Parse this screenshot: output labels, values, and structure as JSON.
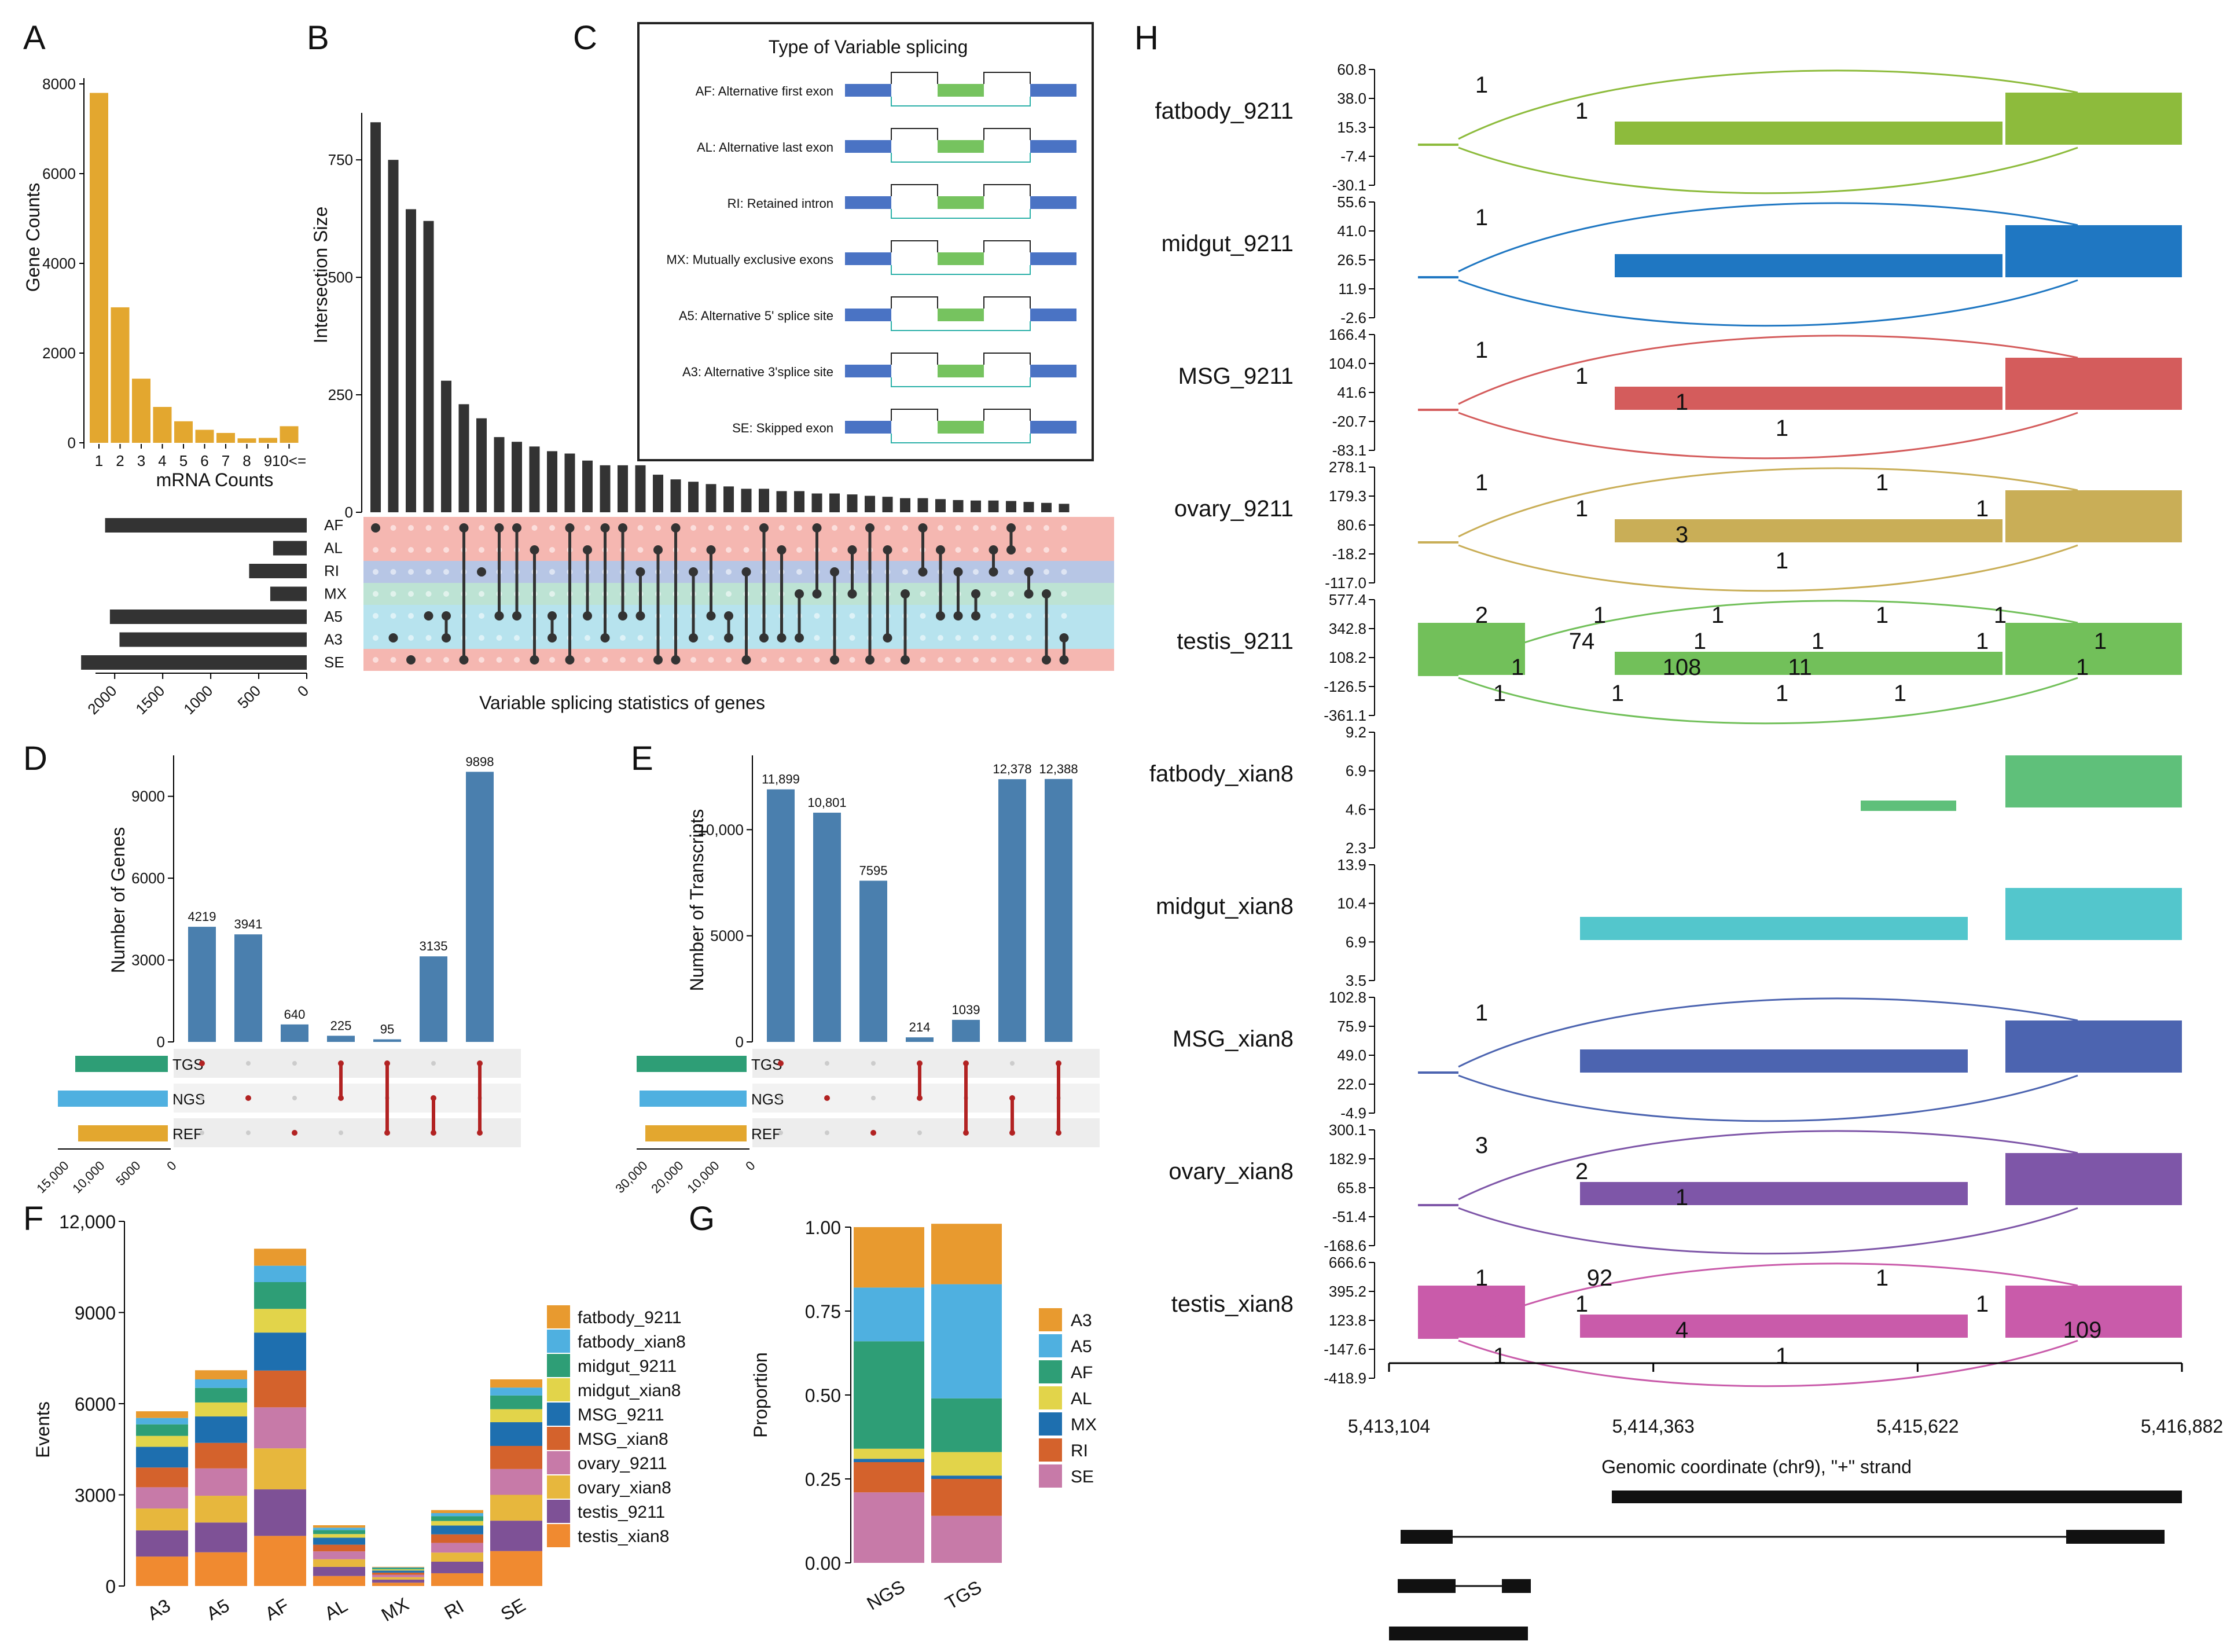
{
  "panel_labels": [
    "A",
    "B",
    "C",
    "D",
    "E",
    "F",
    "G",
    "H"
  ],
  "chart_data": [
    {
      "id": "A",
      "type": "bar",
      "color": "#E3A72F",
      "categories": [
        "1",
        "2",
        "3",
        "4",
        "5",
        "6",
        "7",
        "8",
        "9",
        "10<="
      ],
      "values": [
        7800,
        3020,
        1430,
        800,
        480,
        290,
        220,
        100,
        110,
        370
      ],
      "xlabel": "mRNA Counts",
      "ylabel": "Gene Counts",
      "yticks": [
        "0",
        "2000",
        "4000",
        "6000",
        "8000"
      ],
      "ylim": [
        0,
        8000
      ],
      "set_bars": {
        "labels": [
          "AF",
          "AL",
          "RI",
          "MX",
          "A5",
          "A3",
          "SE"
        ],
        "values": [
          2100,
          350,
          600,
          380,
          2050,
          1950,
          2350
        ],
        "ticks": [
          "2000",
          "1500",
          "1000",
          "500",
          "0"
        ]
      }
    },
    {
      "id": "B",
      "type": "bar",
      "color": "#333333",
      "ylabel": "Intersection Size",
      "yticks": [
        "0",
        "250",
        "500",
        "750"
      ],
      "ylim": [
        0,
        850
      ],
      "values": [
        830,
        750,
        645,
        620,
        280,
        230,
        200,
        160,
        150,
        140,
        130,
        125,
        110,
        100,
        100,
        100,
        80,
        70,
        65,
        60,
        55,
        50,
        50,
        45,
        45,
        40,
        40,
        38,
        35,
        33,
        30,
        30,
        28,
        26,
        25,
        25,
        24,
        22,
        20,
        18
      ],
      "xlabel": "Variable splicing statistics of genes",
      "sets": [
        "AF",
        "AL",
        "RI",
        "MX",
        "A5",
        "A3",
        "SE"
      ],
      "set_colors": [
        "#F5B7B1",
        "#F5B7B1",
        "#B7C6E5",
        "#BDE3D4",
        "#B7E3EE",
        "#B7E3EE",
        "#F5B7B1"
      ]
    },
    {
      "id": "D",
      "type": "bar",
      "color": "#4A7FAE",
      "ylabel": "Number of Genes",
      "yticks": [
        "0",
        "3000",
        "6000",
        "9000"
      ],
      "ylim": [
        0,
        10500
      ],
      "values": [
        4219,
        3941,
        640,
        225,
        95,
        3135,
        9898
      ],
      "value_labels": [
        "4219",
        "3941",
        "640",
        "225",
        "95",
        "3135",
        "9898"
      ],
      "sets": [
        "TGS",
        "NGS",
        "REF"
      ],
      "set_colors": [
        "#2E9E76",
        "#4FB0E0",
        "#E3A72F"
      ],
      "set_ticks": [
        "15,000",
        "10,000",
        "5000",
        "0"
      ]
    },
    {
      "id": "E",
      "type": "bar",
      "color": "#4A7FAE",
      "ylabel": "Number of Transcripts",
      "yticks": [
        "0",
        "5000",
        "10,000"
      ],
      "ylim": [
        0,
        13500
      ],
      "values": [
        11899,
        10801,
        7595,
        214,
        1039,
        12378,
        12388
      ],
      "value_labels": [
        "11,899",
        "10,801",
        "7595",
        "214",
        "1039",
        "12,378",
        "12,388"
      ],
      "sets": [
        "TGS",
        "NGS",
        "REF"
      ],
      "set_colors": [
        "#2E9E76",
        "#4FB0E0",
        "#E3A72F"
      ],
      "set_ticks": [
        "30,000",
        "20,000",
        "10,000",
        "0"
      ]
    },
    {
      "id": "F",
      "type": "bar",
      "stacked": true,
      "title": "",
      "ylabel": "Events",
      "yticks": [
        "0",
        "3000",
        "6000",
        "9000",
        "12,000"
      ],
      "ylim": [
        0,
        12000
      ],
      "categories": [
        "A3",
        "A5",
        "AF",
        "AL",
        "MX",
        "RI",
        "SE"
      ],
      "series": [
        {
          "name": "fatbody_9211",
          "color": "#E89A2F",
          "values": [
            220,
            300,
            560,
            80,
            20,
            100,
            270
          ]
        },
        {
          "name": "fatbody_xian8",
          "color": "#4FB0E0",
          "values": [
            210,
            280,
            540,
            80,
            20,
            100,
            260
          ]
        },
        {
          "name": "midgut_9211",
          "color": "#2E9E76",
          "values": [
            380,
            480,
            880,
            130,
            40,
            160,
            450
          ]
        },
        {
          "name": "midgut_xian8",
          "color": "#E2D44A",
          "values": [
            360,
            460,
            780,
            120,
            40,
            150,
            430
          ]
        },
        {
          "name": "MSG_9211",
          "color": "#1E6FAF",
          "values": [
            680,
            870,
            1250,
            230,
            70,
            290,
            780
          ]
        },
        {
          "name": "MSG_xian8",
          "color": "#D4622C",
          "values": [
            650,
            840,
            1210,
            220,
            70,
            280,
            760
          ]
        },
        {
          "name": "ovary_9211",
          "color": "#C77AA8",
          "values": [
            700,
            900,
            1350,
            260,
            80,
            320,
            850
          ]
        },
        {
          "name": "ovary_xian8",
          "color": "#E7B73D",
          "values": [
            720,
            880,
            1350,
            250,
            80,
            300,
            850
          ]
        },
        {
          "name": "testis_9211",
          "color": "#7E5196",
          "values": [
            860,
            980,
            1530,
            300,
            100,
            380,
            1000
          ]
        },
        {
          "name": "testis_xian8",
          "color": "#F08A30",
          "values": [
            970,
            1110,
            1650,
            330,
            110,
            420,
            1150
          ]
        }
      ]
    },
    {
      "id": "G",
      "type": "bar",
      "stacked": true,
      "ylabel": "Proportion",
      "yticks": [
        "0.00",
        "0.25",
        "0.50",
        "0.75",
        "1.00"
      ],
      "ylim": [
        0,
        1
      ],
      "categories": [
        "NGS",
        "TGS"
      ],
      "series": [
        {
          "name": "SE",
          "color": "#C77AA8",
          "values": [
            0.21,
            0.14
          ]
        },
        {
          "name": "RI",
          "color": "#D4622C",
          "values": [
            0.09,
            0.11
          ]
        },
        {
          "name": "MX",
          "color": "#1E6FAF",
          "values": [
            0.01,
            0.01
          ]
        },
        {
          "name": "AL",
          "color": "#E2D44A",
          "values": [
            0.03,
            0.07
          ]
        },
        {
          "name": "AF",
          "color": "#2E9E76",
          "values": [
            0.32,
            0.16
          ]
        },
        {
          "name": "A5",
          "color": "#4FB0E0",
          "values": [
            0.16,
            0.34
          ]
        },
        {
          "name": "A3",
          "color": "#E89A2F",
          "values": [
            0.18,
            0.18
          ]
        }
      ],
      "legend": [
        "A3",
        "A5",
        "AF",
        "AL",
        "MX",
        "RI",
        "SE"
      ]
    }
  ],
  "panel_c": {
    "title": "Type of Variable splicing",
    "items": [
      "AF: Alternative first exon",
      "AL: Alternative last exon",
      "RI: Retained intron",
      "MX: Mutually exclusive exons",
      "A5: Alternative 5' splice site",
      "A3: Alternative 3'splice site",
      "SE: Skipped exon"
    ]
  },
  "panel_h": {
    "tracks": [
      {
        "name": "fatbody_9211",
        "color": "#8DBB3C",
        "ticks": [
          "60.8",
          "38.0",
          "15.3",
          "-7.4",
          "-30.1"
        ],
        "junctions": [
          "1",
          "1"
        ]
      },
      {
        "name": "midgut_9211",
        "color": "#1F77C2",
        "ticks": [
          "55.6",
          "41.0",
          "26.5",
          "11.9",
          "-2.6"
        ],
        "junctions": [
          "1"
        ]
      },
      {
        "name": "MSG_9211",
        "color": "#D45C5C",
        "ticks": [
          "166.4",
          "104.0",
          "41.6",
          "-20.7",
          "-83.1"
        ],
        "junctions": [
          "1",
          "1",
          "1",
          "1"
        ]
      },
      {
        "name": "ovary_9211",
        "color": "#C9AE57",
        "ticks": [
          "278.1",
          "179.3",
          "80.6",
          "-18.2",
          "-117.0"
        ],
        "junctions": [
          "1",
          "1",
          "3",
          "1",
          "1",
          "1"
        ]
      },
      {
        "name": "testis_9211",
        "color": "#72C05A",
        "ticks": [
          "577.4",
          "342.8",
          "108.2",
          "-126.5",
          "-361.1"
        ],
        "junctions": [
          "2",
          "74",
          "108",
          "1",
          "1",
          "1",
          "1",
          "1",
          "1",
          "1",
          "11",
          "1",
          "1",
          "1",
          "1",
          "1",
          "1",
          "1"
        ]
      },
      {
        "name": "fatbody_xian8",
        "color": "#5FC07A",
        "ticks": [
          "9.2",
          "6.9",
          "4.6",
          "2.3"
        ],
        "junctions": []
      },
      {
        "name": "midgut_xian8",
        "color": "#53C6CC",
        "ticks": [
          "13.9",
          "10.4",
          "6.9",
          "3.5"
        ],
        "junctions": []
      },
      {
        "name": "MSG_xian8",
        "color": "#4C64B0",
        "ticks": [
          "102.8",
          "75.9",
          "49.0",
          "22.0",
          "-4.9"
        ],
        "junctions": [
          "1"
        ]
      },
      {
        "name": "ovary_xian8",
        "color": "#7E56A8",
        "ticks": [
          "300.1",
          "182.9",
          "65.8",
          "-51.4",
          "-168.6"
        ],
        "junctions": [
          "3",
          "2",
          "1"
        ]
      },
      {
        "name": "testis_xian8",
        "color": "#C95BAA",
        "ticks": [
          "666.6",
          "395.2",
          "123.8",
          "-147.6",
          "-418.9"
        ],
        "junctions": [
          "1",
          "1",
          "4",
          "1",
          "1",
          "1",
          "109",
          "1",
          "92"
        ]
      }
    ],
    "x_ticks": [
      "5,413,104",
      "5,414,363",
      "5,415,622",
      "5,416,882"
    ],
    "x_label": "Genomic coordinate (chr9), \"+\" strand"
  }
}
